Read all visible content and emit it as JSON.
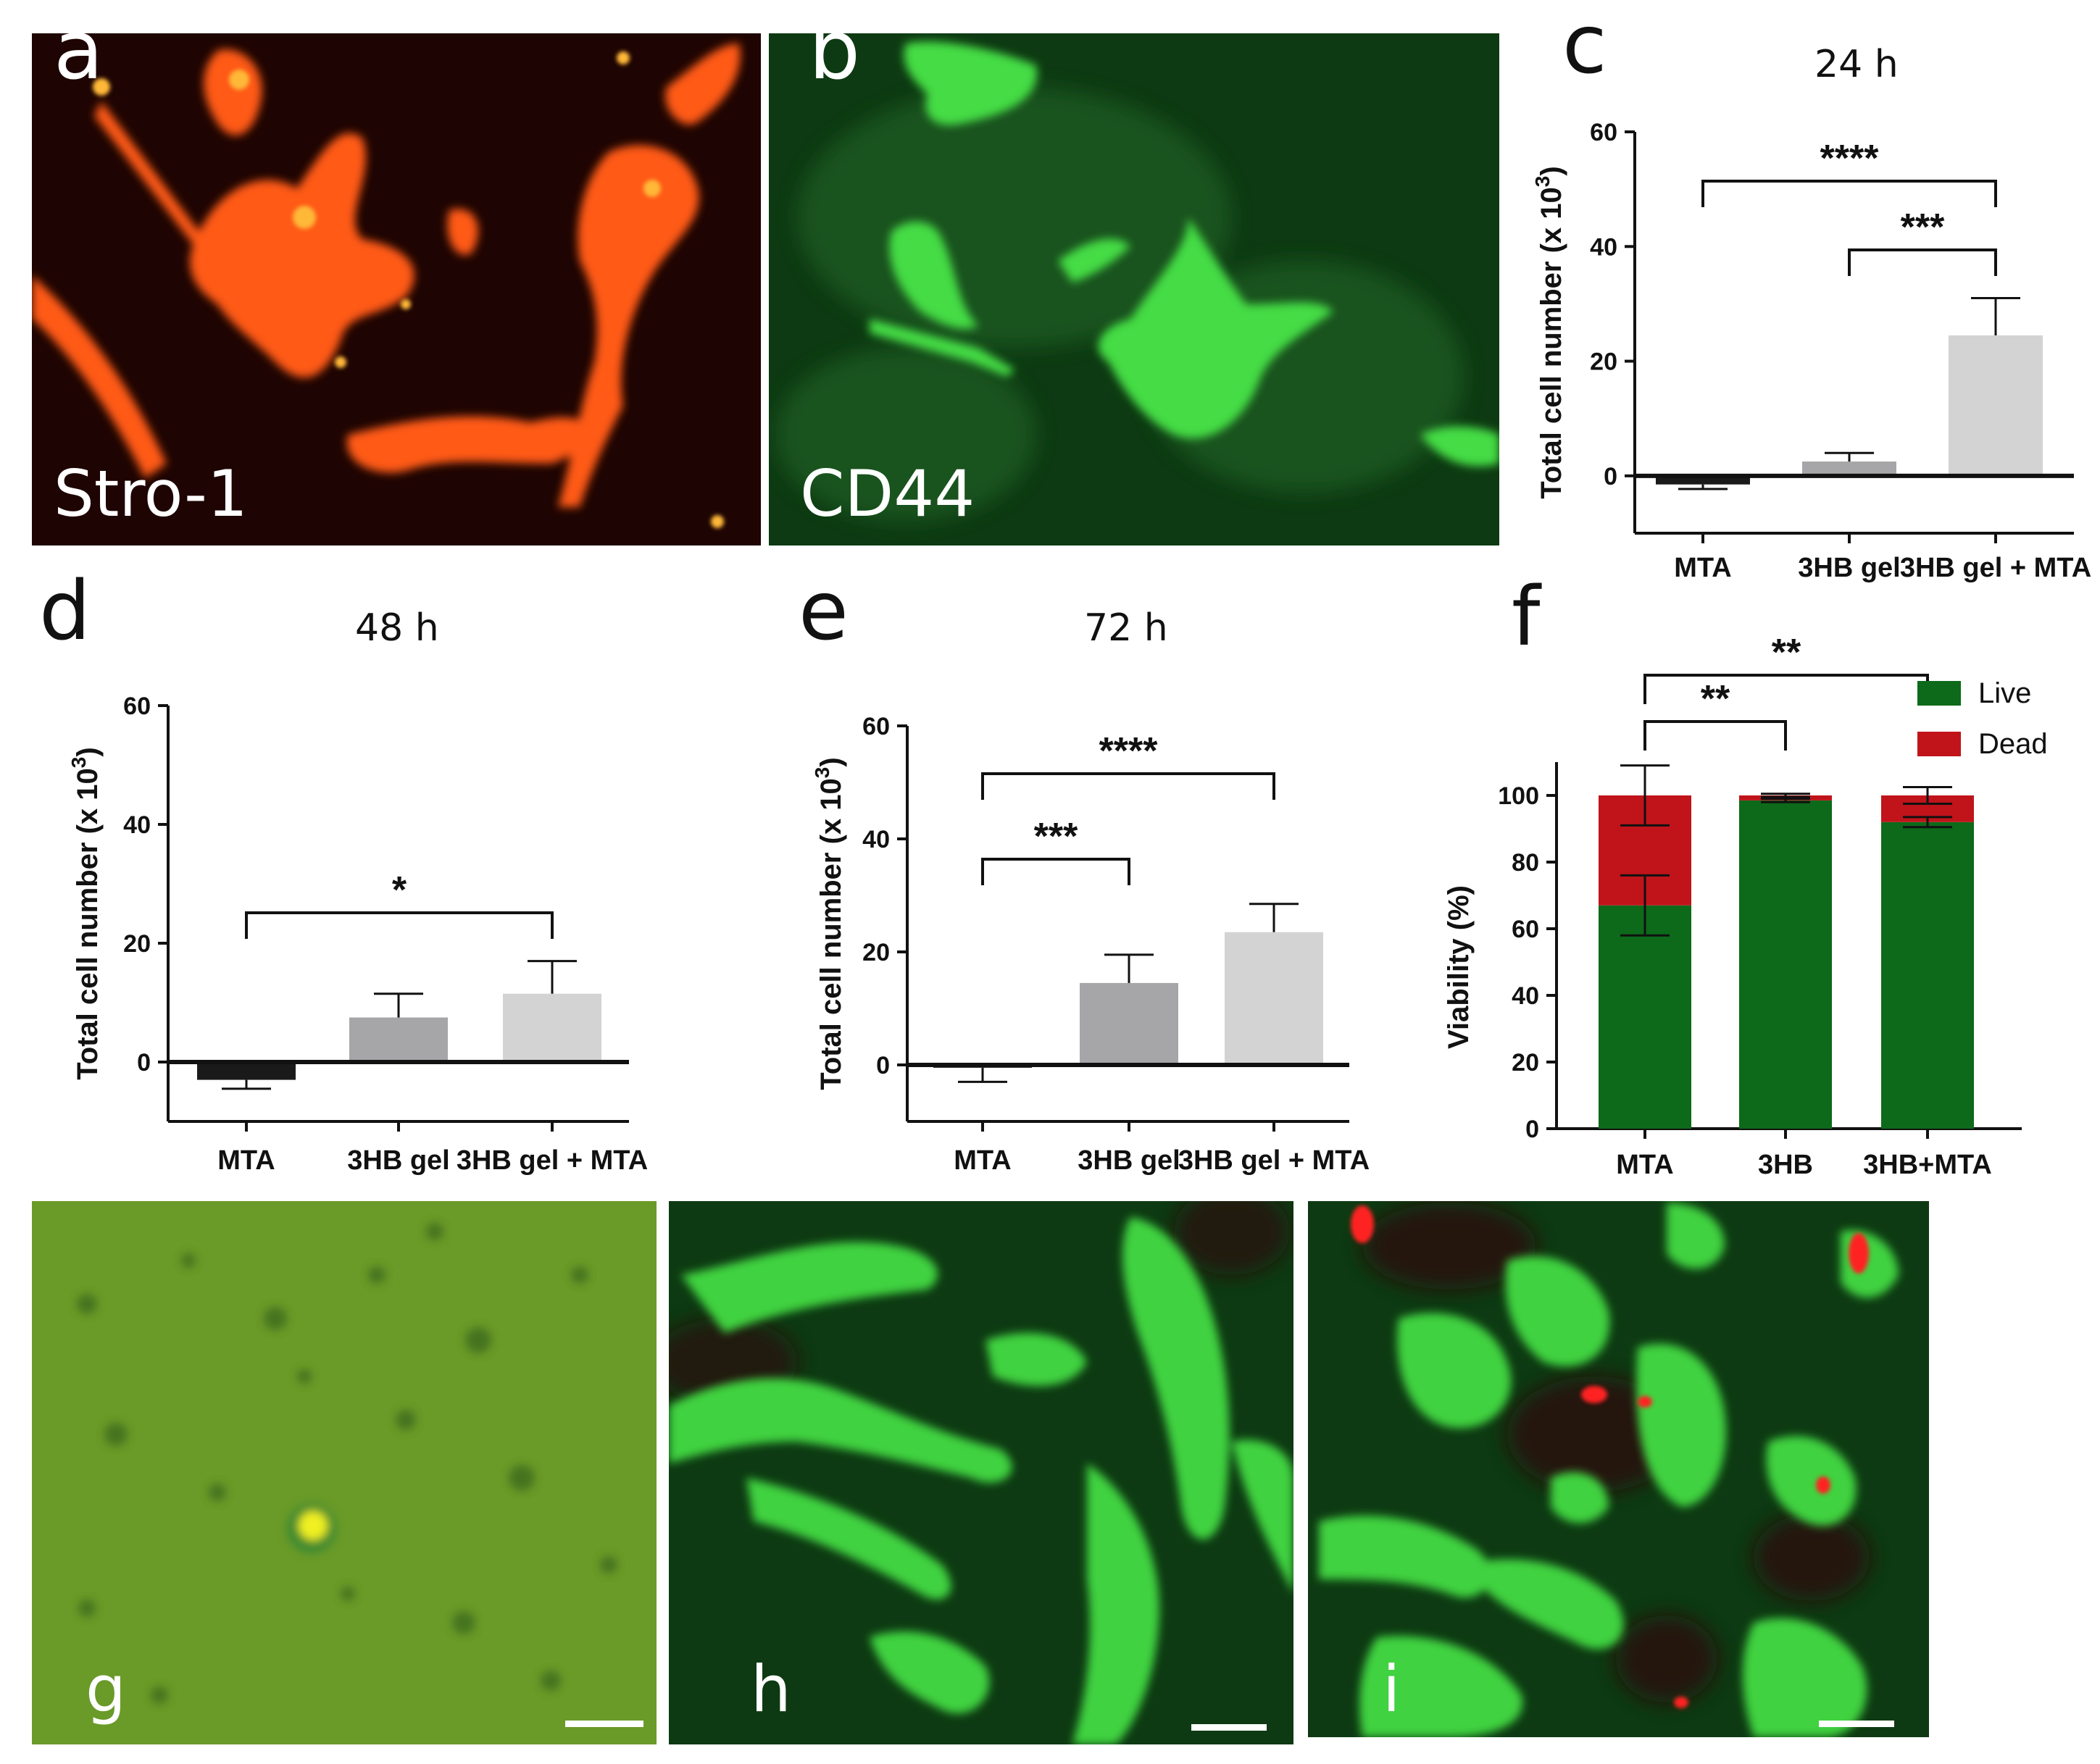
{
  "panels": {
    "a": {
      "label": "a",
      "stain": "Stro-1"
    },
    "b": {
      "label": "b",
      "stain": "CD44"
    },
    "g": {
      "label": "g"
    },
    "h": {
      "label": "h"
    },
    "i": {
      "label": "i"
    }
  },
  "colors": {
    "mta": "#1a1a1a",
    "gel": "#a6a6a8",
    "gel_mta": "#d3d3d4",
    "live": "#0c6a1a",
    "dead": "#c0141a",
    "stro1": "#ff5a14",
    "cd44": "#3cd23c"
  },
  "chart_data": [
    {
      "id": "c",
      "panel_label": "c",
      "type": "bar",
      "title": "24 h",
      "ylabel": "Total cell number (x 10³)",
      "ylabel_main": "Total cell number (x 10",
      "ylabel_sup": "3",
      "ylabel_end": ")",
      "categories": [
        "MTA",
        "3HB gel",
        "3HB gel + MTA"
      ],
      "values": [
        -1.5,
        2.5,
        24.5
      ],
      "errors": [
        0.8,
        1.5,
        6.5
      ],
      "ylim": [
        -10,
        60
      ],
      "yticks": [
        0,
        20,
        40,
        60
      ],
      "significance": [
        {
          "from": 0,
          "to": 2,
          "label": "****"
        },
        {
          "from": 1,
          "to": 2,
          "label": "***"
        }
      ]
    },
    {
      "id": "d",
      "panel_label": "d",
      "type": "bar",
      "title": "48 h",
      "ylabel": "Total cell number (x 10³)",
      "ylabel_main": "Total cell number (x 10",
      "ylabel_sup": "3",
      "ylabel_end": ")",
      "categories": [
        "MTA",
        "3HB gel",
        "3HB gel + MTA"
      ],
      "values": [
        -3,
        7.5,
        11.5
      ],
      "errors": [
        1.5,
        4,
        5.5
      ],
      "ylim": [
        -10,
        60
      ],
      "yticks": [
        0,
        20,
        40,
        60
      ],
      "significance": [
        {
          "from": 0,
          "to": 2,
          "label": "*"
        }
      ]
    },
    {
      "id": "e",
      "panel_label": "e",
      "type": "bar",
      "title": "72 h",
      "ylabel": "Total cell number (x 10³)",
      "ylabel_main": "Total cell number (x 10",
      "ylabel_sup": "3",
      "ylabel_end": ")",
      "categories": [
        "MTA",
        "3HB gel",
        "3HB gel + MTA"
      ],
      "values": [
        -0.5,
        14.5,
        23.5
      ],
      "errors": [
        2.5,
        5,
        5
      ],
      "ylim": [
        -10,
        60
      ],
      "yticks": [
        0,
        20,
        40,
        60
      ],
      "significance": [
        {
          "from": 0,
          "to": 1,
          "label": "***"
        },
        {
          "from": 0,
          "to": 2,
          "label": "****"
        }
      ]
    },
    {
      "id": "f",
      "panel_label": "f",
      "type": "bar",
      "stacked": true,
      "ylabel": "Viability (%)",
      "categories": [
        "MTA",
        "3HB",
        "3HB+MTA"
      ],
      "series": [
        {
          "name": "Live",
          "values": [
            67,
            98.5,
            92
          ],
          "errors": [
            9,
            0.5,
            1.5
          ]
        },
        {
          "name": "Dead",
          "values": [
            33,
            1.5,
            8
          ],
          "errors": [
            9,
            0.5,
            2.5
          ]
        }
      ],
      "ylim": [
        0,
        110
      ],
      "yticks": [
        0,
        20,
        40,
        60,
        80,
        100
      ],
      "legend": "top-right",
      "significance": [
        {
          "from": 0,
          "to": 1,
          "label": "**"
        },
        {
          "from": 0,
          "to": 2,
          "label": "**"
        }
      ]
    }
  ]
}
